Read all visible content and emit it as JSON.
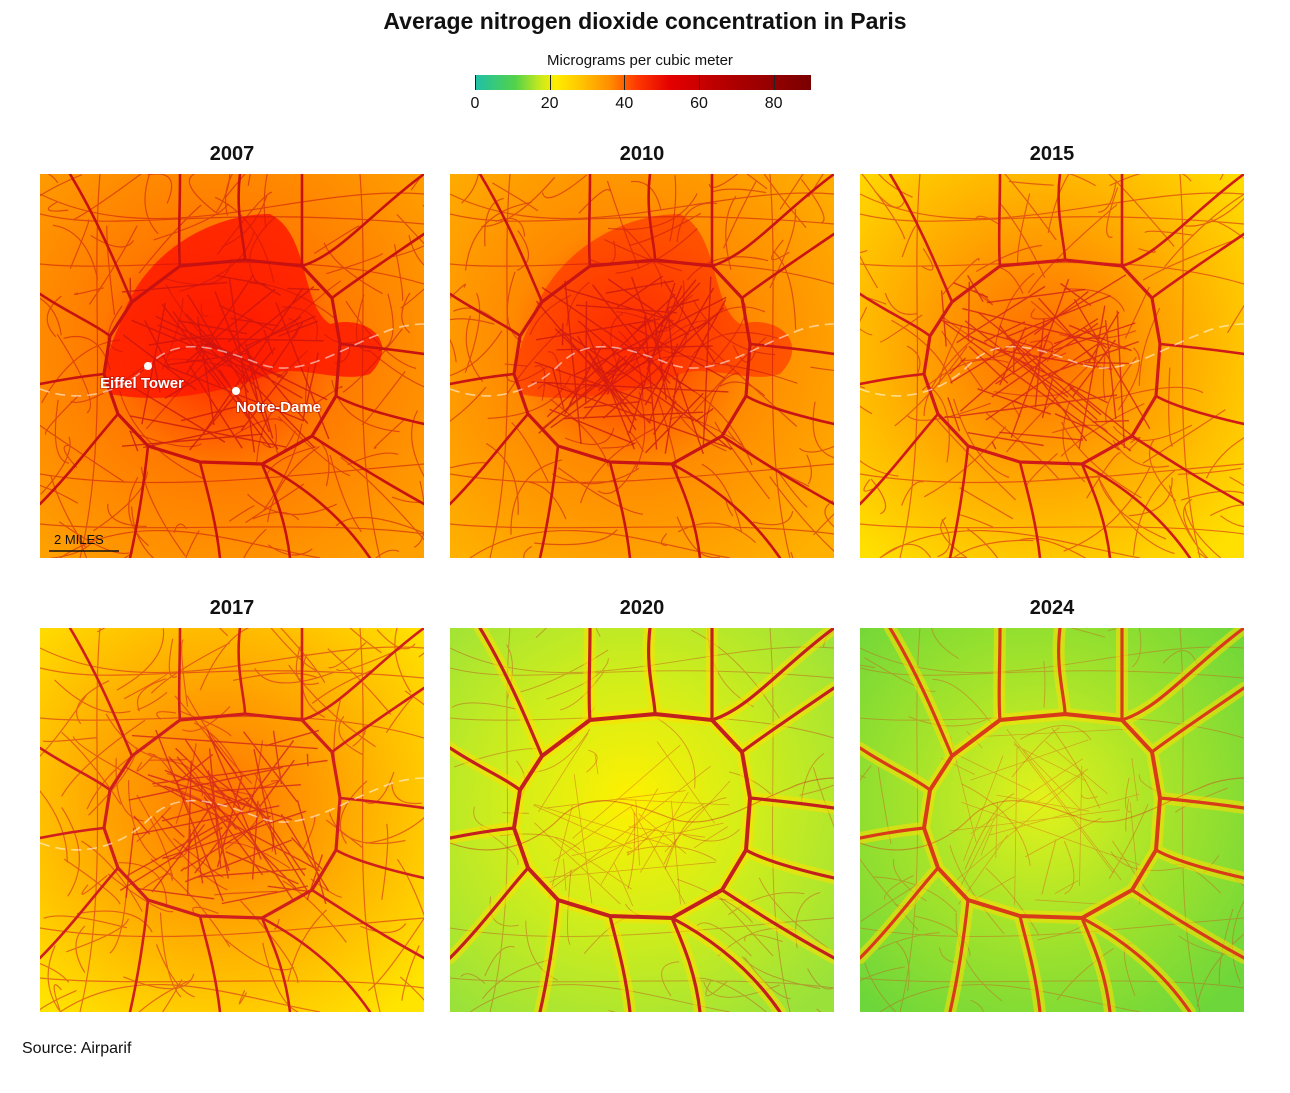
{
  "title": "Average nitrogen dioxide concentration in Paris",
  "legend": {
    "label": "Micrograms per cubic meter",
    "min": 0,
    "max": 90,
    "ticks": [
      "0",
      "20",
      "40",
      "60",
      "80"
    ]
  },
  "panels": [
    {
      "year": "2007",
      "level": "very-high",
      "colors": {
        "bg": "#ff7a00",
        "center": "#ff1a00",
        "road": "#c81212",
        "corner": "#ffa000"
      }
    },
    {
      "year": "2010",
      "level": "high",
      "colors": {
        "bg": "#ff8a00",
        "center": "#ff2a00",
        "road": "#c81414",
        "corner": "#ffb000"
      }
    },
    {
      "year": "2015",
      "level": "elevated",
      "colors": {
        "bg": "#ffa200",
        "center": "#ff6a00",
        "road": "#d01a1a",
        "corner": "#ffe000"
      }
    },
    {
      "year": "2017",
      "level": "elevated",
      "colors": {
        "bg": "#ffa600",
        "center": "#ff7400",
        "road": "#d01e1e",
        "corner": "#ffe400"
      }
    },
    {
      "year": "2020",
      "level": "moderate",
      "colors": {
        "bg": "#d2ee1a",
        "center": "#fff000",
        "road": "#c41f1f",
        "corner": "#9ae23a"
      }
    },
    {
      "year": "2024",
      "level": "low",
      "colors": {
        "bg": "#a8e42a",
        "center": "#e4f21a",
        "road": "#d83a1a",
        "corner": "#6cd63a"
      }
    }
  ],
  "annotations": {
    "eiffel_tower": "Eiffel Tower",
    "notre_dame": "Notre-Dame",
    "scale_bar": "2 MILES"
  },
  "source": "Source: Airparif"
}
